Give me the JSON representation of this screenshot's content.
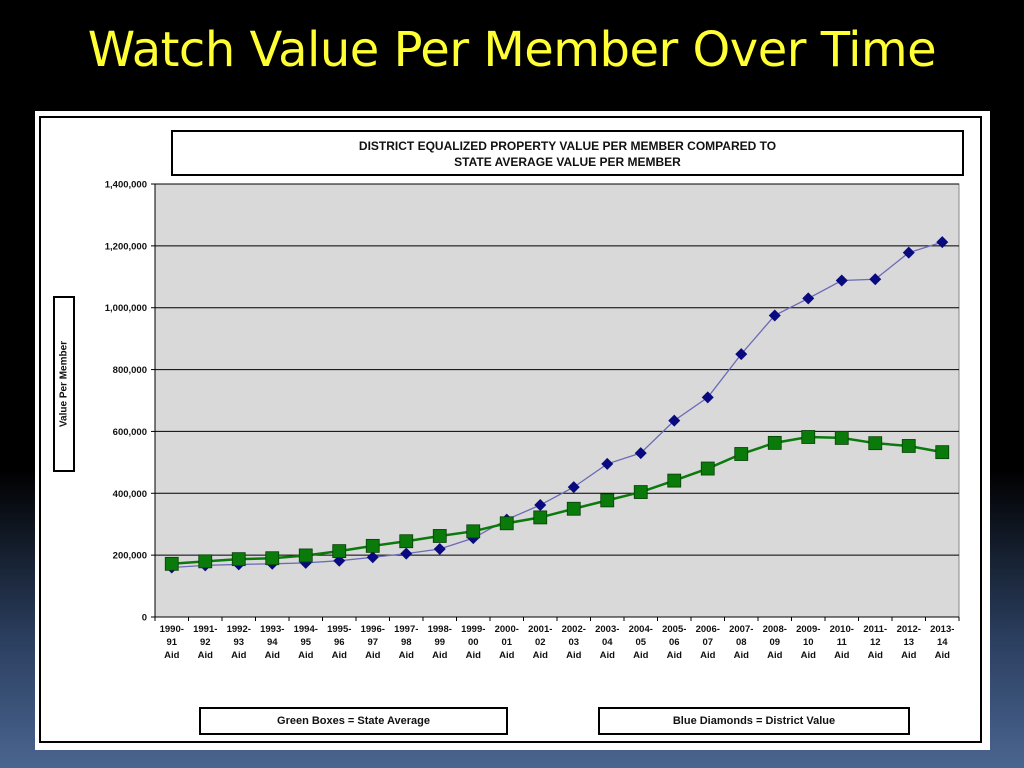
{
  "slide": {
    "title": "Watch Value Per Member Over Time"
  },
  "chart_data": {
    "type": "line",
    "title": "DISTRICT EQUALIZED PROPERTY VALUE PER MEMBER COMPARED TO STATE AVERAGE VALUE PER MEMBER",
    "title_lines": [
      "DISTRICT EQUALIZED PROPERTY VALUE PER MEMBER COMPARED TO",
      "STATE AVERAGE VALUE PER MEMBER"
    ],
    "ylabel": "Value Per Member",
    "xlabel": "",
    "ylim": [
      0,
      1400000
    ],
    "yticks": [
      0,
      200000,
      400000,
      600000,
      800000,
      1000000,
      1200000,
      1400000
    ],
    "ytick_labels": [
      "0",
      "200,000",
      "400,000",
      "600,000",
      "800,000",
      "1,000,000",
      "1,200,000",
      "1,400,000"
    ],
    "grid": true,
    "categories": [
      [
        "1990-",
        "91",
        "Aid"
      ],
      [
        "1991-",
        "92",
        "Aid"
      ],
      [
        "1992-",
        "93",
        "Aid"
      ],
      [
        "1993-",
        "94",
        "Aid"
      ],
      [
        "1994-",
        "95",
        "Aid"
      ],
      [
        "1995-",
        "96",
        "Aid"
      ],
      [
        "1996-",
        "97",
        "Aid"
      ],
      [
        "1997-",
        "98",
        "Aid"
      ],
      [
        "1998-",
        "99",
        "Aid"
      ],
      [
        "1999-",
        "00",
        "Aid"
      ],
      [
        "2000-",
        "01",
        "Aid"
      ],
      [
        "2001-",
        "02",
        "Aid"
      ],
      [
        "2002-",
        "03",
        "Aid"
      ],
      [
        "2003-",
        "04",
        "Aid"
      ],
      [
        "2004-",
        "05",
        "Aid"
      ],
      [
        "2005-",
        "06",
        "Aid"
      ],
      [
        "2006-",
        "07",
        "Aid"
      ],
      [
        "2007-",
        "08",
        "Aid"
      ],
      [
        "2008-",
        "09",
        "Aid"
      ],
      [
        "2009-",
        "10",
        "Aid"
      ],
      [
        "2010-",
        "11",
        "Aid"
      ],
      [
        "2011-",
        "12",
        "Aid"
      ],
      [
        "2012-",
        "13",
        "Aid"
      ],
      [
        "2013-",
        "14",
        "Aid"
      ]
    ],
    "series": [
      {
        "marker": "diamond",
        "color": "#0a0a80",
        "line_color": "#6a6ab8",
        "values": [
          160000,
          167000,
          170000,
          172000,
          175000,
          182000,
          193000,
          205000,
          220000,
          255000,
          315000,
          362000,
          420000,
          495000,
          530000,
          635000,
          710000,
          850000,
          975000,
          1030000,
          1088000,
          1092000,
          1178000,
          1212000
        ]
      },
      {
        "marker": "square",
        "color": "#0a7a0a",
        "line_color": "#0a7a0a",
        "values": [
          172000,
          180000,
          187000,
          190000,
          199000,
          213000,
          230000,
          245000,
          262000,
          277000,
          303000,
          322000,
          350000,
          377000,
          404000,
          441000,
          480000,
          527000,
          563000,
          582000,
          579000,
          562000,
          553000,
          533000
        ]
      }
    ],
    "plot_background": "#d9d9d9",
    "legend": {
      "left": "Green Boxes = State Average",
      "right": "Blue Diamonds = District Value"
    }
  }
}
